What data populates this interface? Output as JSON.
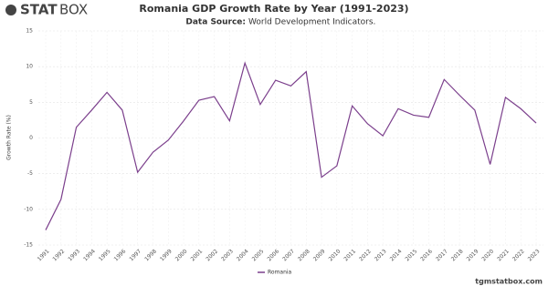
{
  "logo": {
    "bold": "STAT",
    "light": "BOX"
  },
  "footer": "tgmstatbox.com",
  "chart_data": {
    "type": "line",
    "title": "Romania GDP Growth Rate by Year (1991-2023)",
    "subtitle_label": "Data Source:",
    "subtitle": "World Development Indicators.",
    "y_label": "Growth Rate (%)",
    "categories": [
      "1991",
      "1992",
      "1993",
      "1994",
      "1995",
      "1996",
      "1997",
      "1998",
      "1999",
      "2000",
      "2001",
      "2002",
      "2003",
      "2004",
      "2005",
      "2006",
      "2007",
      "2008",
      "2009",
      "2010",
      "2011",
      "2012",
      "2013",
      "2014",
      "2015",
      "2016",
      "2017",
      "2018",
      "2019",
      "2020",
      "2021",
      "2022",
      "2023"
    ],
    "series": [
      {
        "name": "Romania",
        "color": "#7b3f8c",
        "values": [
          -12.9,
          -8.6,
          1.5,
          3.9,
          6.4,
          3.9,
          -4.8,
          -2.0,
          -0.3,
          2.4,
          5.3,
          5.8,
          2.4,
          10.5,
          4.7,
          8.1,
          7.3,
          9.3,
          -5.5,
          -3.9,
          4.5,
          2.0,
          0.3,
          4.1,
          3.2,
          2.9,
          8.2,
          6.0,
          3.9,
          -3.7,
          5.7,
          4.1,
          2.1
        ]
      }
    ],
    "ylim": [
      -15,
      15
    ],
    "yticks": [
      -15,
      -10,
      -5,
      0,
      5,
      10,
      15
    ],
    "grid": true,
    "legend": "bottom"
  }
}
